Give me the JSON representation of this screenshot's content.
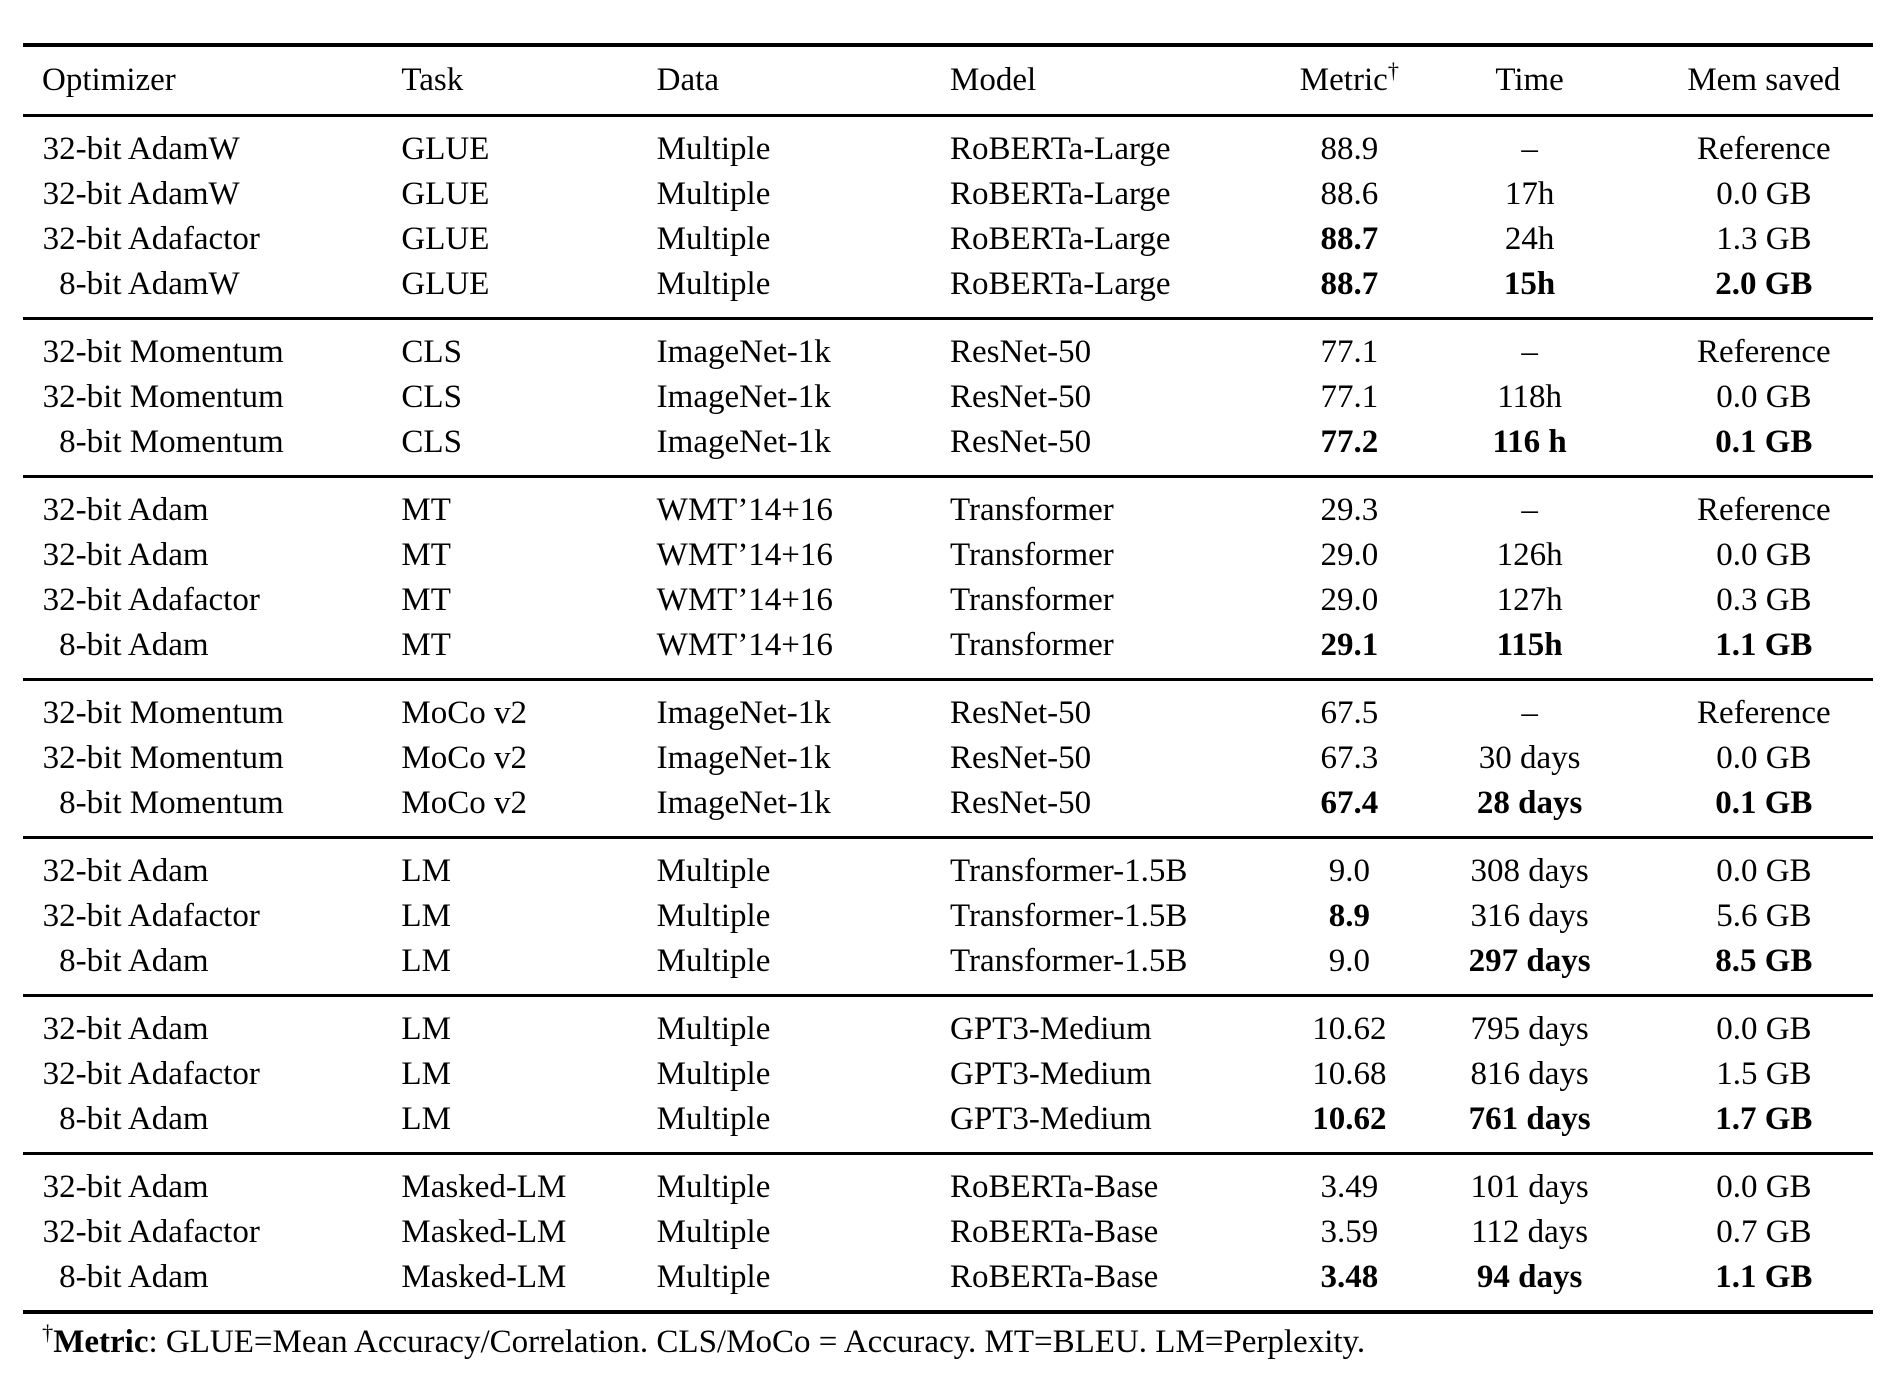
{
  "table": {
    "columns": [
      {
        "label": "Optimizer",
        "align": "left"
      },
      {
        "label": "Task",
        "align": "left"
      },
      {
        "label": "Data",
        "align": "left"
      },
      {
        "label": "Model",
        "align": "left"
      },
      {
        "label": "Metric",
        "dagger": "†",
        "align": "center"
      },
      {
        "label": "Time",
        "align": "center"
      },
      {
        "label": "Mem saved",
        "align": "center"
      }
    ],
    "groups": [
      {
        "rows": [
          {
            "optimizer": "32-bit AdamW",
            "task": "GLUE",
            "data": "Multiple",
            "model": "RoBERTa-Large",
            "metric": "88.9",
            "time": "–",
            "mem": "Reference",
            "bold": []
          },
          {
            "optimizer": "32-bit AdamW",
            "task": "GLUE",
            "data": "Multiple",
            "model": "RoBERTa-Large",
            "metric": "88.6",
            "time": "17h",
            "mem": "0.0 GB",
            "bold": []
          },
          {
            "optimizer": "32-bit Adafactor",
            "task": "GLUE",
            "data": "Multiple",
            "model": "RoBERTa-Large",
            "metric": "88.7",
            "time": "24h",
            "mem": "1.3 GB",
            "bold": [
              "metric"
            ]
          },
          {
            "optimizer": "8-bit AdamW",
            "task": "GLUE",
            "data": "Multiple",
            "model": "RoBERTa-Large",
            "metric": "88.7",
            "time": "15h",
            "mem": "2.0 GB",
            "bold": [
              "metric",
              "time",
              "mem"
            ]
          }
        ]
      },
      {
        "rows": [
          {
            "optimizer": "32-bit Momentum",
            "task": "CLS",
            "data": "ImageNet-1k",
            "model": "ResNet-50",
            "metric": "77.1",
            "time": "–",
            "mem": "Reference",
            "bold": []
          },
          {
            "optimizer": "32-bit Momentum",
            "task": "CLS",
            "data": "ImageNet-1k",
            "model": "ResNet-50",
            "metric": "77.1",
            "time": "118h",
            "mem": "0.0 GB",
            "bold": []
          },
          {
            "optimizer": "8-bit Momentum",
            "task": "CLS",
            "data": "ImageNet-1k",
            "model": "ResNet-50",
            "metric": "77.2",
            "time": "116 h",
            "mem": "0.1 GB",
            "bold": [
              "metric",
              "time",
              "mem"
            ]
          }
        ]
      },
      {
        "rows": [
          {
            "optimizer": "32-bit Adam",
            "task": "MT",
            "data": "WMT’14+16",
            "model": "Transformer",
            "metric": "29.3",
            "time": "–",
            "mem": "Reference",
            "bold": []
          },
          {
            "optimizer": "32-bit Adam",
            "task": "MT",
            "data": "WMT’14+16",
            "model": "Transformer",
            "metric": "29.0",
            "time": "126h",
            "mem": "0.0 GB",
            "bold": []
          },
          {
            "optimizer": "32-bit Adafactor",
            "task": "MT",
            "data": "WMT’14+16",
            "model": "Transformer",
            "metric": "29.0",
            "time": "127h",
            "mem": "0.3 GB",
            "bold": []
          },
          {
            "optimizer": "8-bit Adam",
            "task": "MT",
            "data": "WMT’14+16",
            "model": "Transformer",
            "metric": "29.1",
            "time": "115h",
            "mem": "1.1 GB",
            "bold": [
              "metric",
              "time",
              "mem"
            ]
          }
        ]
      },
      {
        "rows": [
          {
            "optimizer": "32-bit Momentum",
            "task": "MoCo v2",
            "data": "ImageNet-1k",
            "model": "ResNet-50",
            "metric": "67.5",
            "time": "–",
            "mem": "Reference",
            "bold": []
          },
          {
            "optimizer": "32-bit Momentum",
            "task": "MoCo v2",
            "data": "ImageNet-1k",
            "model": "ResNet-50",
            "metric": "67.3",
            "time": "30 days",
            "mem": "0.0 GB",
            "bold": []
          },
          {
            "optimizer": "8-bit Momentum",
            "task": "MoCo v2",
            "data": "ImageNet-1k",
            "model": "ResNet-50",
            "metric": "67.4",
            "time": "28 days",
            "mem": "0.1 GB",
            "bold": [
              "metric",
              "time",
              "mem"
            ]
          }
        ]
      },
      {
        "rows": [
          {
            "optimizer": "32-bit Adam",
            "task": "LM",
            "data": "Multiple",
            "model": "Transformer-1.5B",
            "metric": "9.0",
            "time": "308 days",
            "mem": "0.0 GB",
            "bold": []
          },
          {
            "optimizer": "32-bit Adafactor",
            "task": "LM",
            "data": "Multiple",
            "model": "Transformer-1.5B",
            "metric": "8.9",
            "time": "316 days",
            "mem": "5.6 GB",
            "bold": [
              "metric"
            ]
          },
          {
            "optimizer": "8-bit Adam",
            "task": "LM",
            "data": "Multiple",
            "model": "Transformer-1.5B",
            "metric": "9.0",
            "time": "297 days",
            "mem": "8.5 GB",
            "bold": [
              "time",
              "mem"
            ]
          }
        ]
      },
      {
        "rows": [
          {
            "optimizer": "32-bit Adam",
            "task": "LM",
            "data": "Multiple",
            "model": "GPT3-Medium",
            "metric": "10.62",
            "time": "795 days",
            "mem": "0.0 GB",
            "bold": []
          },
          {
            "optimizer": "32-bit Adafactor",
            "task": "LM",
            "data": "Multiple",
            "model": "GPT3-Medium",
            "metric": "10.68",
            "time": "816 days",
            "mem": "1.5 GB",
            "bold": []
          },
          {
            "optimizer": "8-bit Adam",
            "task": "LM",
            "data": "Multiple",
            "model": "GPT3-Medium",
            "metric": "10.62",
            "time": "761 days",
            "mem": "1.7 GB",
            "bold": [
              "metric",
              "time",
              "mem"
            ]
          }
        ]
      },
      {
        "rows": [
          {
            "optimizer": "32-bit Adam",
            "task": "Masked-LM",
            "data": "Multiple",
            "model": "RoBERTa-Base",
            "metric": "3.49",
            "time": "101 days",
            "mem": "0.0 GB",
            "bold": []
          },
          {
            "optimizer": "32-bit Adafactor",
            "task": "Masked-LM",
            "data": "Multiple",
            "model": "RoBERTa-Base",
            "metric": "3.59",
            "time": "112 days",
            "mem": "0.7 GB",
            "bold": []
          },
          {
            "optimizer": "8-bit Adam",
            "task": "Masked-LM",
            "data": "Multiple",
            "model": "RoBERTa-Base",
            "metric": "3.48",
            "time": "94 days",
            "mem": "1.1 GB",
            "bold": [
              "metric",
              "time",
              "mem"
            ]
          }
        ]
      }
    ],
    "footnote": {
      "dagger": "†",
      "label": "Metric",
      "text": ": GLUE=Mean Accuracy/Correlation. CLS/MoCo = Accuracy. MT=BLEU. LM=Perplexity."
    }
  }
}
